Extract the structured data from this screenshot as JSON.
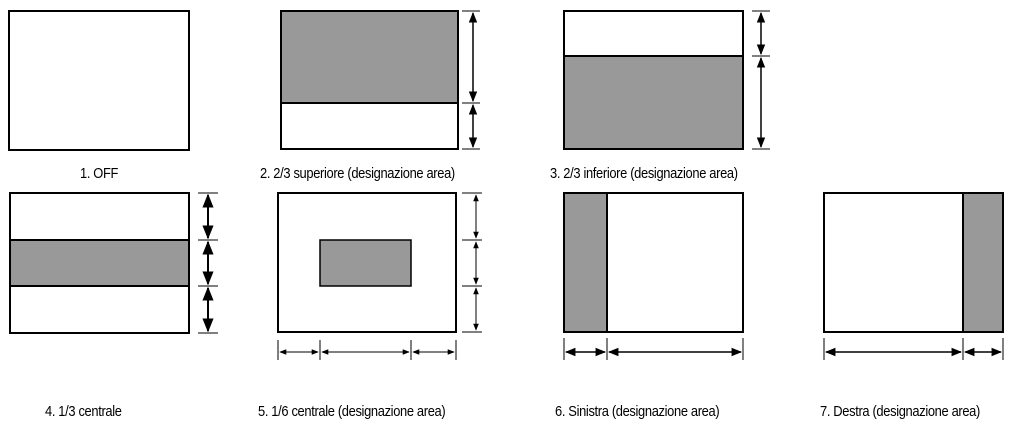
{
  "captions": [
    "1. OFF",
    "2. 2/3 superiore (designazione area)",
    "3. 2/3 inferiore (designazione area)",
    "4. 1/3 centrale",
    "5. 1/6 centrale (designazione area)",
    "6. Sinistra (designazione area)",
    "7. Destra (designazione area)"
  ],
  "colors": {
    "area_fill": "#999999",
    "outline": "#000000",
    "background": "#ffffff"
  }
}
